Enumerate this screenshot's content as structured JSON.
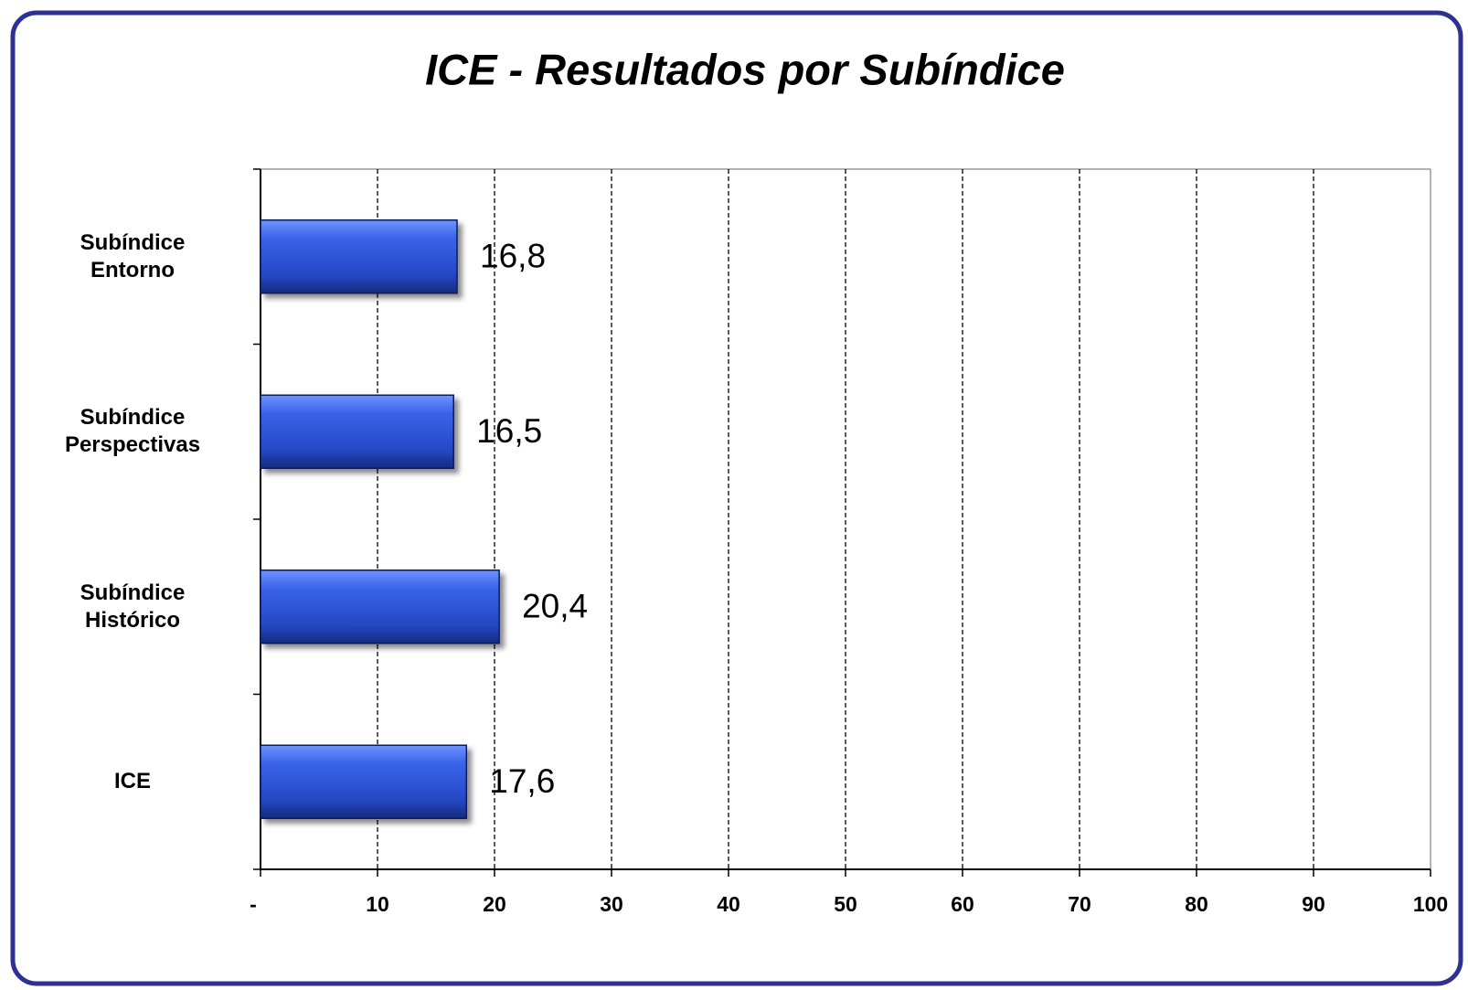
{
  "chart_data": {
    "type": "bar",
    "orientation": "horizontal",
    "title": "ICE - Resultados por Subíndice",
    "categories": [
      "Subíndice\nEntorno",
      "Subíndice\nPerspectivas",
      "Subíndice\nHistórico",
      "ICE"
    ],
    "values": [
      16.8,
      16.5,
      20.4,
      17.6
    ],
    "value_labels": [
      "16,8",
      "16,5",
      "20,4",
      "17,6"
    ],
    "color": "#2f55d4",
    "xlim": [
      0,
      100
    ],
    "xticks": [
      {
        "value": 0,
        "label": "-"
      },
      10,
      20,
      30,
      40,
      50,
      60,
      70,
      80,
      90,
      100
    ],
    "grid": true
  }
}
